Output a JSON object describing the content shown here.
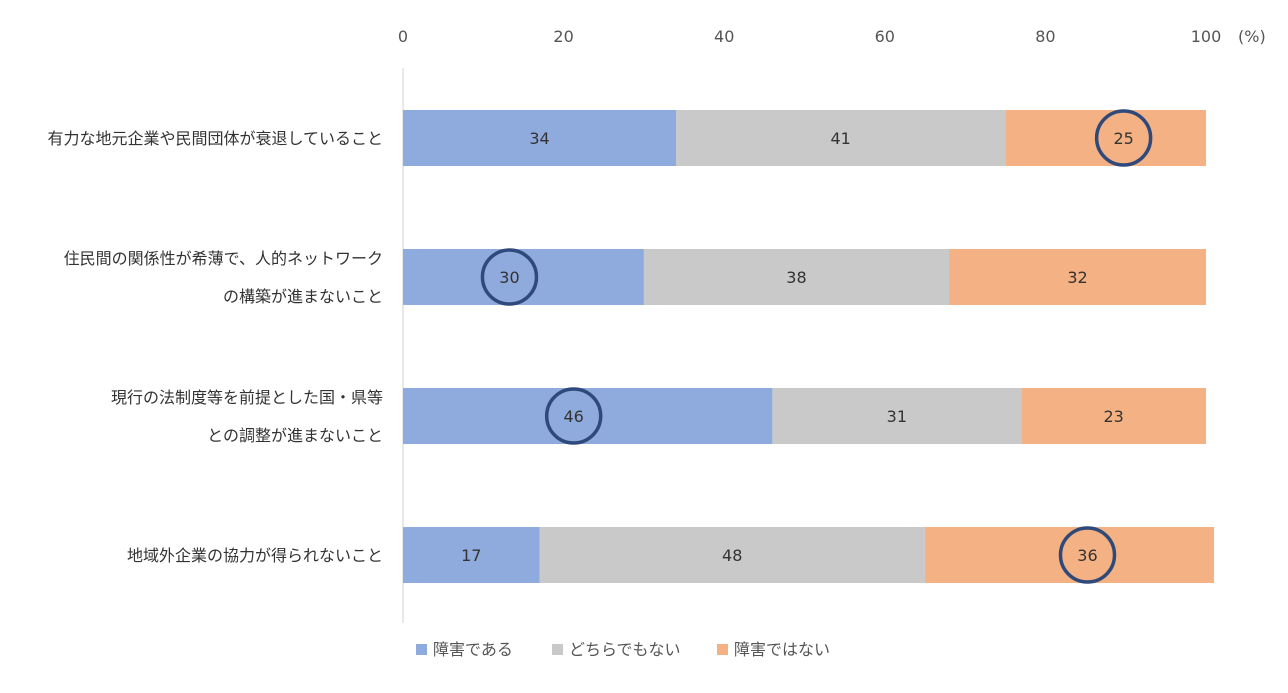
{
  "chart_data": {
    "type": "bar",
    "orientation": "horizontal",
    "stacked": true,
    "unit_label": "(%)",
    "xlim": [
      0,
      100
    ],
    "ticks": [
      0,
      20,
      40,
      60,
      80,
      100
    ],
    "categories": [
      [
        "有力な地元企業や民間団体が衰退していること"
      ],
      [
        "住民間の関係性が希薄で、人的ネットワーク",
        "の構築が進まないこと"
      ],
      [
        "現行の法制度等を前提とした国・県等",
        "との調整が進まないこと"
      ],
      [
        "地域外企業の協力が得られないこと"
      ]
    ],
    "series": [
      {
        "name": "障害である",
        "color": "#8faadc",
        "values": [
          34,
          30,
          46,
          17
        ]
      },
      {
        "name": "どちらでもない",
        "color": "#c9c9c9",
        "values": [
          41,
          38,
          31,
          48
        ]
      },
      {
        "name": "障害ではない",
        "color": "#f4b183",
        "values": [
          25,
          32,
          23,
          36
        ]
      }
    ],
    "highlight": [
      {
        "row": 0,
        "series": 2
      },
      {
        "row": 1,
        "series": 0
      },
      {
        "row": 2,
        "series": 0
      },
      {
        "row": 3,
        "series": 2
      }
    ],
    "highlight_color": "#2f4a7a",
    "legend_position": "bottom",
    "grid": false
  }
}
